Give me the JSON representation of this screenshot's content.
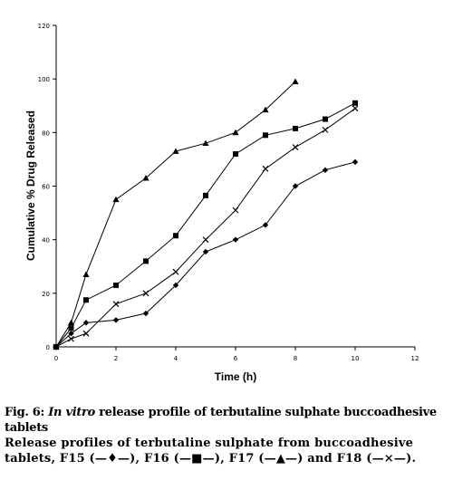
{
  "chart_data": {
    "type": "line",
    "xlabel": "Time (h)",
    "ylabel": "Cumulative % Drug Released",
    "xlim": [
      0,
      12
    ],
    "ylim": [
      0,
      120
    ],
    "xticks": [
      "0",
      "2",
      "4",
      "6",
      "8",
      "10",
      "12"
    ],
    "yticks": [
      "0",
      "20",
      "40",
      "60",
      "80",
      "100",
      "120"
    ],
    "grid": false,
    "legend": "none",
    "series": [
      {
        "marker": "diamond",
        "x": [
          0,
          0.5,
          1,
          2,
          3,
          4,
          5,
          6,
          7,
          8,
          9,
          10
        ],
        "y": [
          0,
          5,
          9,
          10,
          12.5,
          23,
          35.5,
          40,
          45.5,
          60,
          66,
          69
        ]
      },
      {
        "marker": "square",
        "x": [
          0,
          0.5,
          1,
          2,
          3,
          4,
          5,
          6,
          7,
          8,
          9,
          10
        ],
        "y": [
          0,
          7,
          17.5,
          23,
          32,
          41.5,
          56.5,
          72,
          79,
          81.5,
          85,
          91
        ]
      },
      {
        "marker": "triangle",
        "x": [
          0,
          0.5,
          1,
          2,
          3,
          4,
          5,
          6,
          7,
          8
        ],
        "y": [
          0,
          9,
          27,
          55,
          63,
          73,
          76,
          80,
          88.5,
          99
        ]
      },
      {
        "marker": "cross",
        "x": [
          0,
          0.5,
          1,
          2,
          3,
          4,
          5,
          6,
          7,
          8,
          9,
          10
        ],
        "y": [
          0,
          3,
          5,
          16,
          20,
          28,
          40,
          51,
          66.5,
          74.5,
          81,
          89
        ]
      }
    ]
  },
  "caption": {
    "fig_prefix": "Fig. 6: ",
    "fig_italic": "In vitro",
    "fig_title_rest": " release profile of terbutaline sulphate buccoadhesive",
    "fig_title_line2": "tablets",
    "desc_line1": "Release profiles of terbutaline sulphate from buccoadhesive",
    "desc_line2": "tablets, F15 (—♦—), F16 (—■—), F17 (—▲—) and F18 (—×—)."
  }
}
